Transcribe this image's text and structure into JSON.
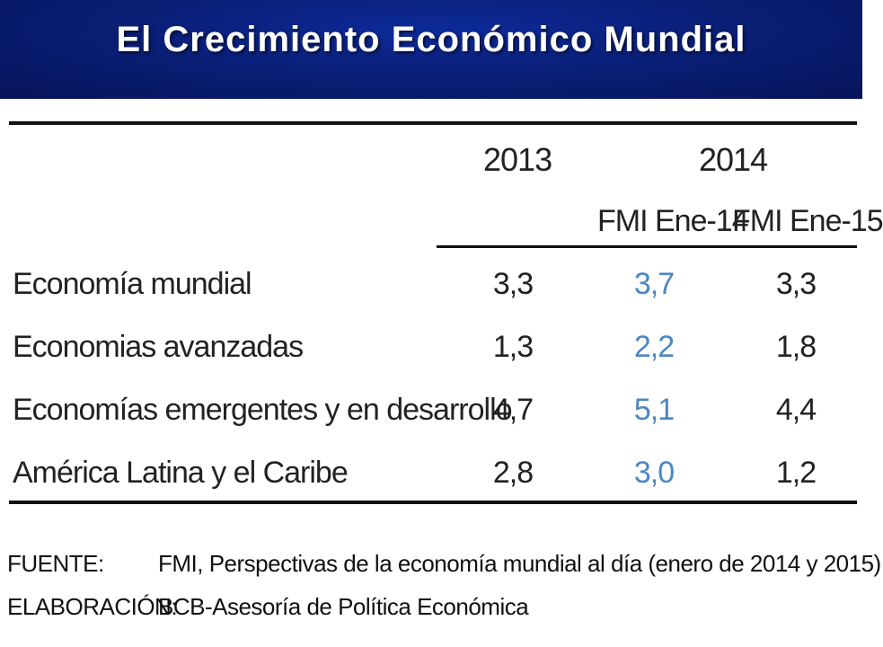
{
  "header": {
    "title": "El Crecimiento Económico Mundial"
  },
  "table": {
    "years": [
      "2013",
      "2014"
    ],
    "subheaders": [
      "FMI Ene-14",
      "FMI Ene-15"
    ],
    "rows": [
      {
        "label": "Economía mundial",
        "v2013": "3,3",
        "fmi14": "3,7",
        "fmi15": "3,3"
      },
      {
        "label": "Economias avanzadas",
        "v2013": "1,3",
        "fmi14": "2,2",
        "fmi15": "1,8"
      },
      {
        "label": "Economías emergentes y en desarrollo",
        "v2013": "4,7",
        "fmi14": "5,1",
        "fmi15": "4,4"
      },
      {
        "label": "América Latina y el Caribe",
        "v2013": "2,8",
        "fmi14": "3,0",
        "fmi15": "1,2"
      }
    ]
  },
  "footer": {
    "source_label": "FUENTE:",
    "source_text": "FMI, Perspectivas de la economía mundial al día (enero de 2014 y 2015)",
    "elab_label": "ELABORACIÓN:",
    "elab_text": "BCB-Asesoría de Política Económica"
  },
  "colors": {
    "header_blue": "#0a1f78",
    "highlight_blue": "#4a86c5"
  }
}
